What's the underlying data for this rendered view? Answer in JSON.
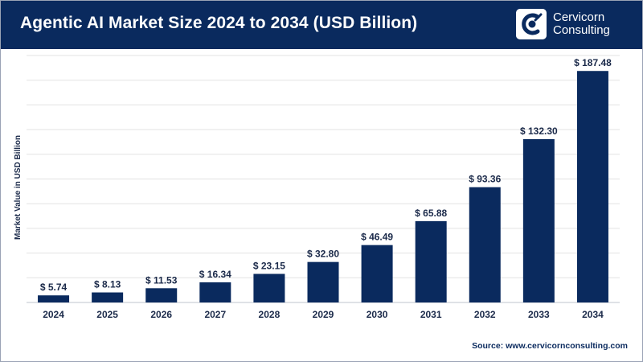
{
  "header": {
    "title": "Agentic AI Market Size 2024 to 2034 (USD Billion)",
    "logo": {
      "line1": "Cervicorn",
      "line2": "Consulting",
      "icon": "cervicorn-logo-icon"
    }
  },
  "footer": {
    "source": "Source: www.cervicornconsulting.com"
  },
  "colors": {
    "header_bg": "#0a2a5e",
    "bar": "#0a2a5e",
    "grid": "#e3e3e3",
    "text": "#1b2a4a"
  },
  "chart_data": {
    "type": "bar",
    "title": "Agentic AI Market Size 2024 to 2034 (USD Billion)",
    "xlabel": "",
    "ylabel": "Market Value in USD Billion",
    "categories": [
      "2024",
      "2025",
      "2026",
      "2027",
      "2028",
      "2029",
      "2030",
      "2031",
      "2032",
      "2033",
      "2034"
    ],
    "values": [
      5.74,
      8.13,
      11.53,
      16.34,
      23.15,
      32.8,
      46.49,
      65.88,
      93.36,
      132.3,
      187.48
    ],
    "data_labels": [
      "$ 5.74",
      "$ 8.13",
      "$ 11.53",
      "$ 16.34",
      "$ 23.15",
      "$ 32.80",
      "$ 46.49",
      "$ 65.88",
      "$ 93.36",
      "$ 132.30",
      "$ 187.48"
    ],
    "ylim": [
      0,
      200
    ],
    "grid": true,
    "legend": "none"
  }
}
